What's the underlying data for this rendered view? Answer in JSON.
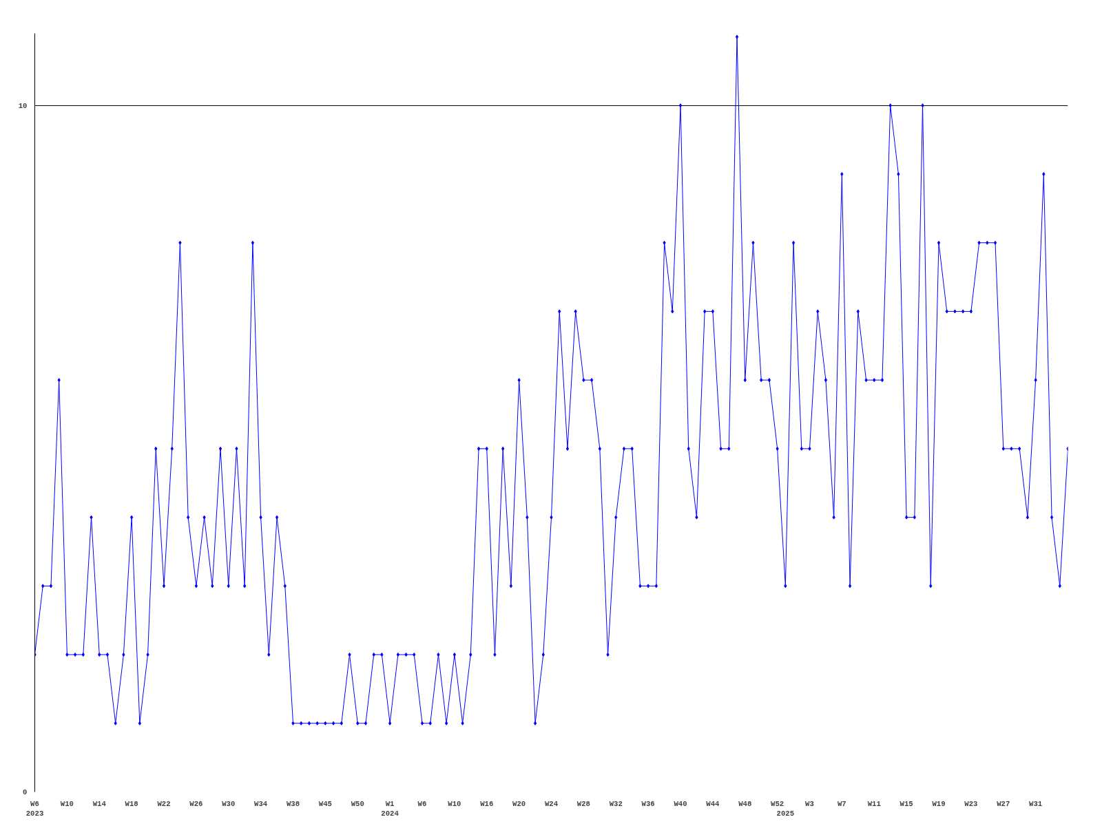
{
  "chart_data": {
    "type": "line",
    "categories": [
      "W6\n2023",
      null,
      null,
      null,
      "W10",
      null,
      null,
      null,
      "W14",
      null,
      null,
      null,
      "W18",
      null,
      null,
      null,
      "W22",
      null,
      null,
      null,
      "W26",
      null,
      null,
      null,
      "W30",
      null,
      null,
      null,
      "W34",
      null,
      null,
      null,
      "W38",
      null,
      null,
      null,
      "W45",
      null,
      null,
      null,
      "W50",
      null,
      null,
      null,
      "W1\n2024",
      null,
      null,
      null,
      "W6",
      null,
      null,
      null,
      "W10",
      null,
      null,
      null,
      "W16",
      null,
      null,
      null,
      "W20",
      null,
      null,
      null,
      "W24",
      null,
      null,
      null,
      "W28",
      null,
      null,
      null,
      "W32",
      null,
      null,
      null,
      "W36",
      null,
      null,
      null,
      "W40",
      null,
      null,
      null,
      "W44",
      null,
      null,
      null,
      "W48",
      null,
      null,
      null,
      "W52",
      "\n2025",
      null,
      null,
      "W3",
      null,
      null,
      null,
      "W7",
      null,
      null,
      null,
      "W11",
      null,
      null,
      null,
      "W15",
      null,
      null,
      null,
      "W19",
      null,
      null,
      null,
      "W23",
      null,
      null,
      null,
      "W27",
      null,
      null,
      null,
      "W31",
      null,
      null,
      null,
      null
    ],
    "series": [
      {
        "color": "#0000ff",
        "values": [
          2,
          3,
          3,
          6,
          2,
          2,
          2,
          4,
          2,
          2,
          1,
          2,
          4,
          1,
          2,
          5,
          3,
          5,
          8,
          4,
          3,
          4,
          3,
          5,
          3,
          5,
          3,
          8,
          4,
          2,
          4,
          3,
          1,
          1,
          1,
          1,
          1,
          1,
          1,
          2,
          1,
          1,
          2,
          2,
          1,
          2,
          2,
          2,
          1,
          1,
          2,
          1,
          2,
          1,
          2,
          5,
          5,
          2,
          5,
          3,
          6,
          4,
          1,
          2,
          4,
          7,
          5,
          7,
          6,
          6,
          5,
          2,
          4,
          5,
          5,
          3,
          3,
          3,
          8,
          7,
          10,
          5,
          4,
          7,
          7,
          5,
          5,
          11,
          6,
          8,
          6,
          6,
          5,
          3,
          8,
          5,
          5,
          7,
          6,
          4,
          9,
          3,
          7,
          6,
          6,
          6,
          10,
          9,
          4,
          4,
          10,
          3,
          8,
          7,
          7,
          7,
          7,
          8,
          8,
          8,
          5,
          5,
          5,
          4,
          6,
          9,
          4,
          3,
          5
        ]
      }
    ],
    "ylim": [
      0,
      11.05
    ],
    "yticks": [
      0,
      10
    ],
    "grid": "y",
    "marker": "diamond",
    "line_style": "solid"
  }
}
